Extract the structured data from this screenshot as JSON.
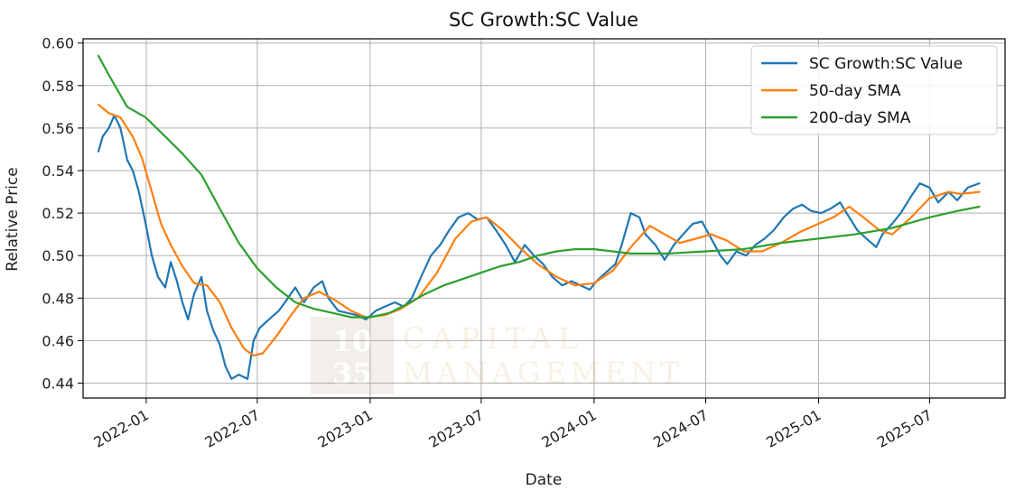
{
  "chart_data": {
    "type": "line",
    "title": "SC Growth:SC Value",
    "xlabel": "Date",
    "ylabel": "Relative Price",
    "ylim": [
      0.433,
      0.602
    ],
    "xlim": [
      "2021-09-20",
      "2025-11-01"
    ],
    "grid": true,
    "legend_position": "top-right",
    "x_ticks": [
      {
        "date": "2022-01-01",
        "label": "2022-01"
      },
      {
        "date": "2022-07-01",
        "label": "2022-07"
      },
      {
        "date": "2023-01-01",
        "label": "2023-01"
      },
      {
        "date": "2023-07-01",
        "label": "2023-07"
      },
      {
        "date": "2024-01-01",
        "label": "2024-01"
      },
      {
        "date": "2024-07-01",
        "label": "2024-07"
      },
      {
        "date": "2025-01-01",
        "label": "2025-01"
      },
      {
        "date": "2025-07-01",
        "label": "2025-07"
      }
    ],
    "y_ticks": [
      {
        "value": 0.44,
        "label": "0.44"
      },
      {
        "value": 0.46,
        "label": "0.46"
      },
      {
        "value": 0.48,
        "label": "0.48"
      },
      {
        "value": 0.5,
        "label": "0.50"
      },
      {
        "value": 0.52,
        "label": "0.52"
      },
      {
        "value": 0.54,
        "label": "0.54"
      },
      {
        "value": 0.56,
        "label": "0.56"
      },
      {
        "value": 0.58,
        "label": "0.58"
      },
      {
        "value": 0.6,
        "label": "0.60"
      }
    ],
    "series": [
      {
        "name": "SC Growth:SC Value",
        "color": "#1f77b4",
        "points": [
          [
            "2021-10-15",
            0.549
          ],
          [
            "2021-10-22",
            0.556
          ],
          [
            "2021-11-01",
            0.56
          ],
          [
            "2021-11-10",
            0.566
          ],
          [
            "2021-11-20",
            0.56
          ],
          [
            "2021-12-01",
            0.545
          ],
          [
            "2021-12-10",
            0.54
          ],
          [
            "2021-12-20",
            0.53
          ],
          [
            "2021-12-31",
            0.515
          ],
          [
            "2022-01-10",
            0.5
          ],
          [
            "2022-01-20",
            0.49
          ],
          [
            "2022-02-01",
            0.485
          ],
          [
            "2022-02-10",
            0.497
          ],
          [
            "2022-02-20",
            0.488
          ],
          [
            "2022-03-01",
            0.478
          ],
          [
            "2022-03-10",
            0.47
          ],
          [
            "2022-03-20",
            0.482
          ],
          [
            "2022-04-01",
            0.49
          ],
          [
            "2022-04-10",
            0.474
          ],
          [
            "2022-04-20",
            0.465
          ],
          [
            "2022-05-01",
            0.458
          ],
          [
            "2022-05-10",
            0.448
          ],
          [
            "2022-05-20",
            0.442
          ],
          [
            "2022-06-01",
            0.444
          ],
          [
            "2022-06-15",
            0.442
          ],
          [
            "2022-06-25",
            0.46
          ],
          [
            "2022-07-05",
            0.466
          ],
          [
            "2022-07-20",
            0.47
          ],
          [
            "2022-08-05",
            0.474
          ],
          [
            "2022-08-20",
            0.48
          ],
          [
            "2022-09-01",
            0.485
          ],
          [
            "2022-09-15",
            0.478
          ],
          [
            "2022-10-01",
            0.485
          ],
          [
            "2022-10-15",
            0.488
          ],
          [
            "2022-10-25",
            0.48
          ],
          [
            "2022-11-10",
            0.474
          ],
          [
            "2022-11-25",
            0.473
          ],
          [
            "2022-12-10",
            0.472
          ],
          [
            "2022-12-25",
            0.47
          ],
          [
            "2023-01-10",
            0.474
          ],
          [
            "2023-01-25",
            0.476
          ],
          [
            "2023-02-10",
            0.478
          ],
          [
            "2023-02-25",
            0.476
          ],
          [
            "2023-03-10",
            0.48
          ],
          [
            "2023-03-25",
            0.49
          ],
          [
            "2023-04-10",
            0.5
          ],
          [
            "2023-04-25",
            0.505
          ],
          [
            "2023-05-10",
            0.512
          ],
          [
            "2023-05-25",
            0.518
          ],
          [
            "2023-06-10",
            0.52
          ],
          [
            "2023-06-25",
            0.517
          ],
          [
            "2023-07-10",
            0.518
          ],
          [
            "2023-07-25",
            0.512
          ],
          [
            "2023-08-10",
            0.505
          ],
          [
            "2023-08-25",
            0.497
          ],
          [
            "2023-09-10",
            0.505
          ],
          [
            "2023-09-25",
            0.5
          ],
          [
            "2023-10-10",
            0.496
          ],
          [
            "2023-10-25",
            0.49
          ],
          [
            "2023-11-10",
            0.486
          ],
          [
            "2023-11-25",
            0.488
          ],
          [
            "2023-12-10",
            0.486
          ],
          [
            "2023-12-25",
            0.484
          ],
          [
            "2024-01-05",
            0.488
          ],
          [
            "2024-01-20",
            0.492
          ],
          [
            "2024-02-05",
            0.496
          ],
          [
            "2024-02-15",
            0.505
          ],
          [
            "2024-03-01",
            0.52
          ],
          [
            "2024-03-15",
            0.518
          ],
          [
            "2024-03-25",
            0.51
          ],
          [
            "2024-04-10",
            0.505
          ],
          [
            "2024-04-25",
            0.498
          ],
          [
            "2024-05-10",
            0.505
          ],
          [
            "2024-05-25",
            0.51
          ],
          [
            "2024-06-10",
            0.515
          ],
          [
            "2024-06-25",
            0.516
          ],
          [
            "2024-07-10",
            0.508
          ],
          [
            "2024-07-25",
            0.5
          ],
          [
            "2024-08-05",
            0.496
          ],
          [
            "2024-08-20",
            0.502
          ],
          [
            "2024-09-05",
            0.5
          ],
          [
            "2024-09-20",
            0.505
          ],
          [
            "2024-10-05",
            0.508
          ],
          [
            "2024-10-20",
            0.512
          ],
          [
            "2024-11-05",
            0.518
          ],
          [
            "2024-11-20",
            0.522
          ],
          [
            "2024-12-05",
            0.524
          ],
          [
            "2024-12-20",
            0.521
          ],
          [
            "2025-01-05",
            0.52
          ],
          [
            "2025-01-20",
            0.522
          ],
          [
            "2025-02-05",
            0.525
          ],
          [
            "2025-02-20",
            0.518
          ],
          [
            "2025-03-05",
            0.512
          ],
          [
            "2025-03-20",
            0.508
          ],
          [
            "2025-04-05",
            0.504
          ],
          [
            "2025-04-15",
            0.51
          ],
          [
            "2025-05-01",
            0.515
          ],
          [
            "2025-05-15",
            0.52
          ],
          [
            "2025-06-01",
            0.528
          ],
          [
            "2025-06-15",
            0.534
          ],
          [
            "2025-07-01",
            0.532
          ],
          [
            "2025-07-15",
            0.525
          ],
          [
            "2025-08-01",
            0.53
          ],
          [
            "2025-08-15",
            0.526
          ],
          [
            "2025-09-01",
            0.532
          ],
          [
            "2025-09-20",
            0.534
          ]
        ]
      },
      {
        "name": "50-day SMA",
        "color": "#ff7f0e",
        "points": [
          [
            "2021-10-15",
            0.571
          ],
          [
            "2021-11-01",
            0.567
          ],
          [
            "2021-11-20",
            0.565
          ],
          [
            "2021-12-10",
            0.556
          ],
          [
            "2021-12-25",
            0.546
          ],
          [
            "2022-01-10",
            0.53
          ],
          [
            "2022-01-25",
            0.515
          ],
          [
            "2022-02-10",
            0.505
          ],
          [
            "2022-03-01",
            0.495
          ],
          [
            "2022-03-20",
            0.487
          ],
          [
            "2022-04-10",
            0.486
          ],
          [
            "2022-05-01",
            0.478
          ],
          [
            "2022-05-20",
            0.466
          ],
          [
            "2022-06-10",
            0.456
          ],
          [
            "2022-06-25",
            0.453
          ],
          [
            "2022-07-10",
            0.454
          ],
          [
            "2022-08-01",
            0.462
          ],
          [
            "2022-08-25",
            0.472
          ],
          [
            "2022-09-15",
            0.48
          ],
          [
            "2022-10-10",
            0.483
          ],
          [
            "2022-11-05",
            0.479
          ],
          [
            "2022-12-01",
            0.474
          ],
          [
            "2022-12-25",
            0.471
          ],
          [
            "2023-01-25",
            0.472
          ],
          [
            "2023-02-20",
            0.475
          ],
          [
            "2023-03-20",
            0.48
          ],
          [
            "2023-04-20",
            0.492
          ],
          [
            "2023-05-20",
            0.508
          ],
          [
            "2023-06-15",
            0.516
          ],
          [
            "2023-07-10",
            0.518
          ],
          [
            "2023-08-05",
            0.512
          ],
          [
            "2023-09-01",
            0.504
          ],
          [
            "2023-10-01",
            0.496
          ],
          [
            "2023-11-01",
            0.49
          ],
          [
            "2023-12-01",
            0.486
          ],
          [
            "2024-01-01",
            0.487
          ],
          [
            "2024-02-01",
            0.493
          ],
          [
            "2024-03-01",
            0.504
          ],
          [
            "2024-04-01",
            0.514
          ],
          [
            "2024-04-25",
            0.51
          ],
          [
            "2024-05-20",
            0.506
          ],
          [
            "2024-06-15",
            0.508
          ],
          [
            "2024-07-10",
            0.51
          ],
          [
            "2024-08-05",
            0.507
          ],
          [
            "2024-09-01",
            0.502
          ],
          [
            "2024-10-01",
            0.502
          ],
          [
            "2024-11-01",
            0.506
          ],
          [
            "2024-12-01",
            0.511
          ],
          [
            "2025-01-01",
            0.515
          ],
          [
            "2025-01-25",
            0.518
          ],
          [
            "2025-02-20",
            0.523
          ],
          [
            "2025-03-15",
            0.518
          ],
          [
            "2025-04-10",
            0.512
          ],
          [
            "2025-05-01",
            0.51
          ],
          [
            "2025-06-01",
            0.518
          ],
          [
            "2025-07-01",
            0.527
          ],
          [
            "2025-08-01",
            0.53
          ],
          [
            "2025-08-20",
            0.529
          ],
          [
            "2025-09-20",
            0.53
          ]
        ]
      },
      {
        "name": "200-day SMA",
        "color": "#2ca02c",
        "points": [
          [
            "2021-10-15",
            0.594
          ],
          [
            "2021-11-01",
            0.585
          ],
          [
            "2021-12-01",
            0.57
          ],
          [
            "2021-12-31",
            0.565
          ],
          [
            "2022-02-01",
            0.556
          ],
          [
            "2022-03-01",
            0.548
          ],
          [
            "2022-04-01",
            0.538
          ],
          [
            "2022-05-01",
            0.522
          ],
          [
            "2022-06-01",
            0.506
          ],
          [
            "2022-07-01",
            0.494
          ],
          [
            "2022-08-01",
            0.485
          ],
          [
            "2022-09-01",
            0.478
          ],
          [
            "2022-10-01",
            0.475
          ],
          [
            "2022-11-01",
            0.473
          ],
          [
            "2022-12-01",
            0.471
          ],
          [
            "2023-01-01",
            0.471
          ],
          [
            "2023-02-01",
            0.473
          ],
          [
            "2023-03-01",
            0.477
          ],
          [
            "2023-04-01",
            0.482
          ],
          [
            "2023-05-01",
            0.486
          ],
          [
            "2023-06-01",
            0.489
          ],
          [
            "2023-07-01",
            0.492
          ],
          [
            "2023-08-01",
            0.495
          ],
          [
            "2023-09-01",
            0.497
          ],
          [
            "2023-10-01",
            0.5
          ],
          [
            "2023-11-01",
            0.502
          ],
          [
            "2023-12-01",
            0.503
          ],
          [
            "2024-01-01",
            0.503
          ],
          [
            "2024-03-01",
            0.501
          ],
          [
            "2024-05-01",
            0.501
          ],
          [
            "2024-07-01",
            0.502
          ],
          [
            "2024-09-01",
            0.503
          ],
          [
            "2024-11-01",
            0.506
          ],
          [
            "2025-01-01",
            0.508
          ],
          [
            "2025-03-01",
            0.51
          ],
          [
            "2025-05-01",
            0.513
          ],
          [
            "2025-07-01",
            0.518
          ],
          [
            "2025-08-15",
            0.521
          ],
          [
            "2025-09-20",
            0.523
          ]
        ]
      }
    ]
  },
  "watermark": {
    "badge_line1": "10",
    "badge_line2": "35",
    "text_line1": "CAPITAL",
    "text_line2": "MANAGEMENT"
  }
}
